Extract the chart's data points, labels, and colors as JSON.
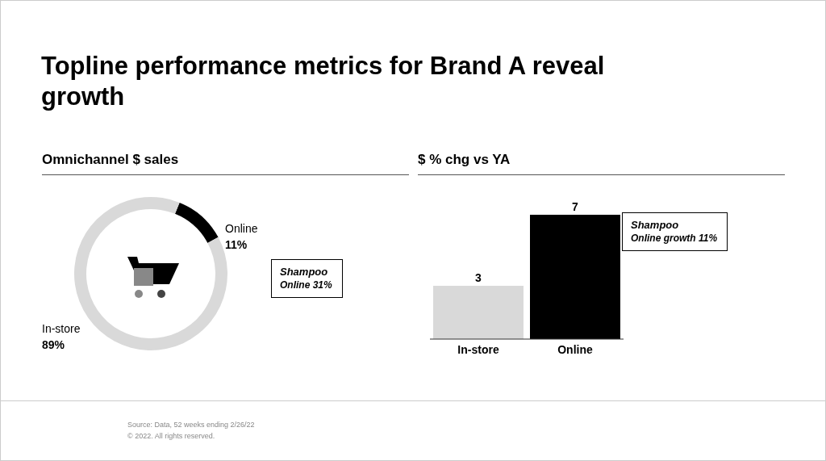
{
  "chart_data": [
    {
      "type": "donut",
      "title": "Topline performance metrics for Brand A reveal growth",
      "subtitle": "Omnichannel $ sales",
      "categories": [
        "Online",
        "In-store"
      ],
      "values": [
        11,
        89
      ],
      "value_labels": [
        "11%",
        "89%"
      ],
      "colors": [
        "#000000",
        "#d9d9d9"
      ],
      "annotations": [
        "Shampoo\nOnline 31%",
        "Source: Data, 52 weeks ending 2/26/22",
        "© 2022. All rights reserved."
      ]
    },
    {
      "type": "bar",
      "title": "$ % chg vs YA",
      "categories": [
        "In-store",
        "Online"
      ],
      "values": [
        3,
        7
      ],
      "colors": [
        "#d9d9d9",
        "#000000"
      ],
      "data_labels": true,
      "annotations": [
        "Shampoo\nOnline growth 11%"
      ]
    }
  ]
}
